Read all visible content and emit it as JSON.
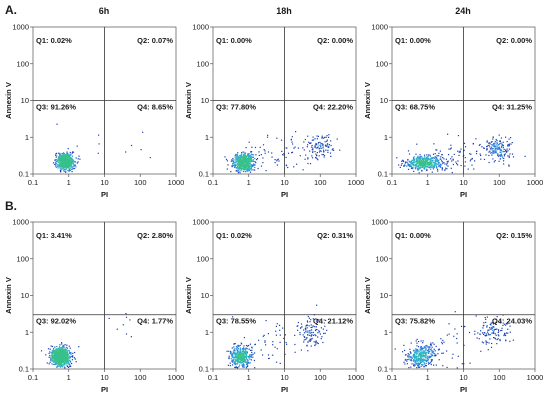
{
  "figure": {
    "rows": [
      {
        "label": "A.",
        "panels": [
          0,
          1,
          2
        ]
      },
      {
        "label": "B.",
        "panels": [
          3,
          4,
          5
        ]
      }
    ],
    "column_headers": [
      "6h",
      "18h",
      "24h"
    ]
  },
  "chart_data": [
    {
      "type": "scatter",
      "row": "A.",
      "column": "6h",
      "xlabel": "PI",
      "ylabel": "Annexin V",
      "xscale": "log",
      "yscale": "log",
      "xlim": [
        0.1,
        1000
      ],
      "ylim": [
        0.1,
        1000
      ],
      "xticks": [
        "0.1",
        "1",
        "10",
        "100",
        "1000"
      ],
      "yticks": [
        "0.1",
        "1",
        "10",
        "100",
        "1000"
      ],
      "gates": {
        "x": 10,
        "y": 10
      },
      "quadrants": {
        "Q1": "Q1: 0.02%",
        "Q2": "Q2: 0.07%",
        "Q3": "Q3: 91.26%",
        "Q4": "Q4: 8.65%"
      },
      "populations": [
        {
          "center": [
            0.8,
            0.22
          ],
          "spread": [
            0.12,
            0.11
          ],
          "count": 650
        },
        {
          "center": [
            3,
            0.5
          ],
          "spread": [
            0.45,
            0.35
          ],
          "count": 6
        },
        {
          "center": [
            110,
            0.5
          ],
          "spread": [
            0.1,
            0.3
          ],
          "count": 4
        }
      ]
    },
    {
      "type": "scatter",
      "row": "A.",
      "column": "18h",
      "xlabel": "PI",
      "ylabel": "Annexin V",
      "xscale": "log",
      "yscale": "log",
      "xlim": [
        0.1,
        1000
      ],
      "ylim": [
        0.1,
        1000
      ],
      "xticks": [
        "0.1",
        "1",
        "10",
        "100",
        "1000"
      ],
      "yticks": [
        "0.1",
        "1",
        "10",
        "100",
        "1000"
      ],
      "gates": {
        "x": 10,
        "y": 10
      },
      "quadrants": {
        "Q1": "Q1: 0.00%",
        "Q2": "Q2: 0.00%",
        "Q3": "Q3: 77.80%",
        "Q4": "Q4: 22.20%"
      },
      "populations": [
        {
          "center": [
            0.75,
            0.21
          ],
          "spread": [
            0.16,
            0.12
          ],
          "count": 560
        },
        {
          "center": [
            95,
            0.55
          ],
          "spread": [
            0.2,
            0.18
          ],
          "count": 110
        },
        {
          "center": [
            8,
            0.35
          ],
          "spread": [
            0.5,
            0.3
          ],
          "count": 60
        }
      ]
    },
    {
      "type": "scatter",
      "row": "A.",
      "column": "24h",
      "xlabel": "PI",
      "ylabel": "Annexin V",
      "xscale": "log",
      "yscale": "log",
      "xlim": [
        0.1,
        1000
      ],
      "ylim": [
        0.1,
        1000
      ],
      "xticks": [
        "0.1",
        "1",
        "10",
        "100",
        "1000"
      ],
      "yticks": [
        "0.1",
        "1",
        "10",
        "100",
        "1000"
      ],
      "gates": {
        "x": 10,
        "y": 10
      },
      "quadrants": {
        "Q1": "Q1: 0.00%",
        "Q2": "Q2: 0.00%",
        "Q3": "Q3: 68.75%",
        "Q4": "Q4: 31.25%"
      },
      "populations": [
        {
          "center": [
            0.8,
            0.2
          ],
          "spread": [
            0.28,
            0.1
          ],
          "count": 520
        },
        {
          "center": [
            90,
            0.45
          ],
          "spread": [
            0.22,
            0.18
          ],
          "count": 170
        },
        {
          "center": [
            10,
            0.3
          ],
          "spread": [
            0.45,
            0.25
          ],
          "count": 70
        }
      ]
    },
    {
      "type": "scatter",
      "row": "B.",
      "column": "6h",
      "xlabel": "PI",
      "ylabel": "Annexin V",
      "xscale": "log",
      "yscale": "log",
      "xlim": [
        0.1,
        1000
      ],
      "ylim": [
        0.1,
        1000
      ],
      "xticks": [
        "0.1",
        "1",
        "10",
        "100",
        "1000"
      ],
      "yticks": [
        "0.1",
        "1",
        "10",
        "100",
        "1000"
      ],
      "gates": {
        "x": 10,
        "y": 3
      },
      "quadrants": {
        "Q1": "Q1: 3.41%",
        "Q2": "Q2: 2.80%",
        "Q3": "Q3: 92.02%",
        "Q4": "Q4: 1.77%"
      },
      "populations": [
        {
          "center": [
            0.6,
            0.22
          ],
          "spread": [
            0.13,
            0.13
          ],
          "count": 850
        },
        {
          "center": [
            0.6,
            0.25
          ],
          "spread": [
            0.06,
            0.06
          ],
          "count": 180
        },
        {
          "center": [
            30,
            1.5
          ],
          "spread": [
            0.35,
            0.25
          ],
          "count": 8
        }
      ]
    },
    {
      "type": "scatter",
      "row": "B.",
      "column": "18h",
      "xlabel": "PI",
      "ylabel": "Annexin V",
      "xscale": "log",
      "yscale": "log",
      "xlim": [
        0.1,
        1000
      ],
      "ylim": [
        0.1,
        1000
      ],
      "xticks": [
        "0.1",
        "1",
        "10",
        "100",
        "1000"
      ],
      "yticks": [
        "0.1",
        "1",
        "10",
        "100",
        "1000"
      ],
      "gates": {
        "x": 10,
        "y": 3
      },
      "quadrants": {
        "Q1": "Q1: 0.02%",
        "Q2": "Q2: 0.31%",
        "Q3": "Q3: 78.55%",
        "Q4": "Q4: 21.12%"
      },
      "populations": [
        {
          "center": [
            0.6,
            0.22
          ],
          "spread": [
            0.15,
            0.16
          ],
          "count": 420
        },
        {
          "center": [
            55,
            1.0
          ],
          "spread": [
            0.2,
            0.2
          ],
          "count": 110
        },
        {
          "center": [
            6,
            0.5
          ],
          "spread": [
            0.4,
            0.35
          ],
          "count": 40
        }
      ]
    },
    {
      "type": "scatter",
      "row": "B.",
      "column": "24h",
      "xlabel": "PI",
      "ylabel": "Annexin V",
      "xscale": "log",
      "yscale": "log",
      "xlim": [
        0.1,
        1000
      ],
      "ylim": [
        0.1,
        1000
      ],
      "xticks": [
        "0.1",
        "1",
        "10",
        "100",
        "1000"
      ],
      "yticks": [
        "0.1",
        "1",
        "10",
        "100",
        "1000"
      ],
      "gates": {
        "x": 10,
        "y": 3
      },
      "quadrants": {
        "Q1": "Q1: 0.00%",
        "Q2": "Q2: 0.15%",
        "Q3": "Q3: 75.82%",
        "Q4": "Q4: 24.03%"
      },
      "populations": [
        {
          "center": [
            0.65,
            0.22
          ],
          "spread": [
            0.2,
            0.17
          ],
          "count": 380
        },
        {
          "center": [
            65,
            1.0
          ],
          "spread": [
            0.22,
            0.2
          ],
          "count": 110
        },
        {
          "center": [
            7,
            0.5
          ],
          "spread": [
            0.4,
            0.35
          ],
          "count": 40
        }
      ]
    }
  ]
}
